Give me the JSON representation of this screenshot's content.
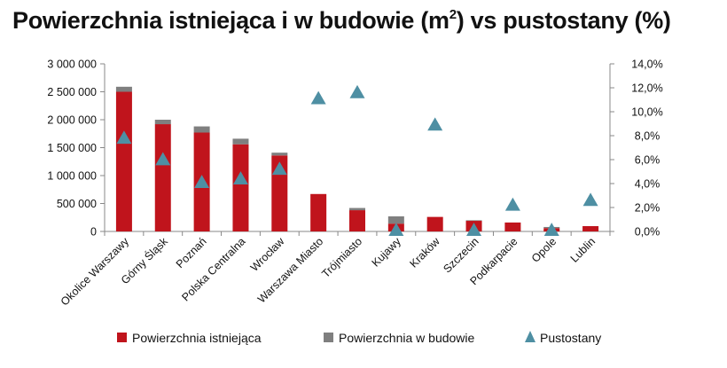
{
  "title": {
    "prefix": "Powierzchnia istniejąca i w budowie (m",
    "sup": "2",
    "suffix": ") vs pustostany (%)"
  },
  "colors": {
    "existing": "#c0141c",
    "construction": "#7f7f7f",
    "vacancy": "#4e8fa3"
  },
  "chart_data": {
    "type": "bar",
    "categories": [
      "Okolice Warszawy",
      "Górny Śląsk",
      "Poznań",
      "Polska Centralna",
      "Wrocław",
      "Warszawa Miasto",
      "Trójmiasto",
      "Kujawy",
      "Kraków",
      "Szczecin",
      "Podkarpacie",
      "Opole",
      "Lublin"
    ],
    "series": [
      {
        "name": "Powierzchnia istniejąca",
        "type": "bar",
        "stack": "area",
        "axis": "left",
        "values": [
          2500000,
          1920000,
          1770000,
          1560000,
          1360000,
          670000,
          380000,
          140000,
          260000,
          190000,
          160000,
          60000,
          95000
        ]
      },
      {
        "name": "Powierzchnia w budowie",
        "type": "bar",
        "stack": "area",
        "axis": "left",
        "values": [
          90000,
          80000,
          110000,
          100000,
          50000,
          0,
          40000,
          130000,
          0,
          10000,
          0,
          20000,
          0
        ]
      },
      {
        "name": "Pustostany",
        "type": "scatter",
        "marker": "triangle",
        "axis": "right",
        "values": [
          7.8,
          6.0,
          4.1,
          4.4,
          5.2,
          11.1,
          11.6,
          0.1,
          8.9,
          0.1,
          2.2,
          0.1,
          2.6
        ]
      }
    ],
    "y_left": {
      "min": 0,
      "max": 3000000,
      "ticks": [
        "0",
        "500 000",
        "1 000 000",
        "1 500 000",
        "2 000 000",
        "2 500 000",
        "3 000 000"
      ]
    },
    "y_right": {
      "min": 0,
      "max": 14,
      "ticks": [
        "0,0%",
        "2,0%",
        "4,0%",
        "6,0%",
        "8,0%",
        "10,0%",
        "12,0%",
        "14,0%"
      ]
    },
    "grid": false,
    "legend_position": "bottom"
  }
}
